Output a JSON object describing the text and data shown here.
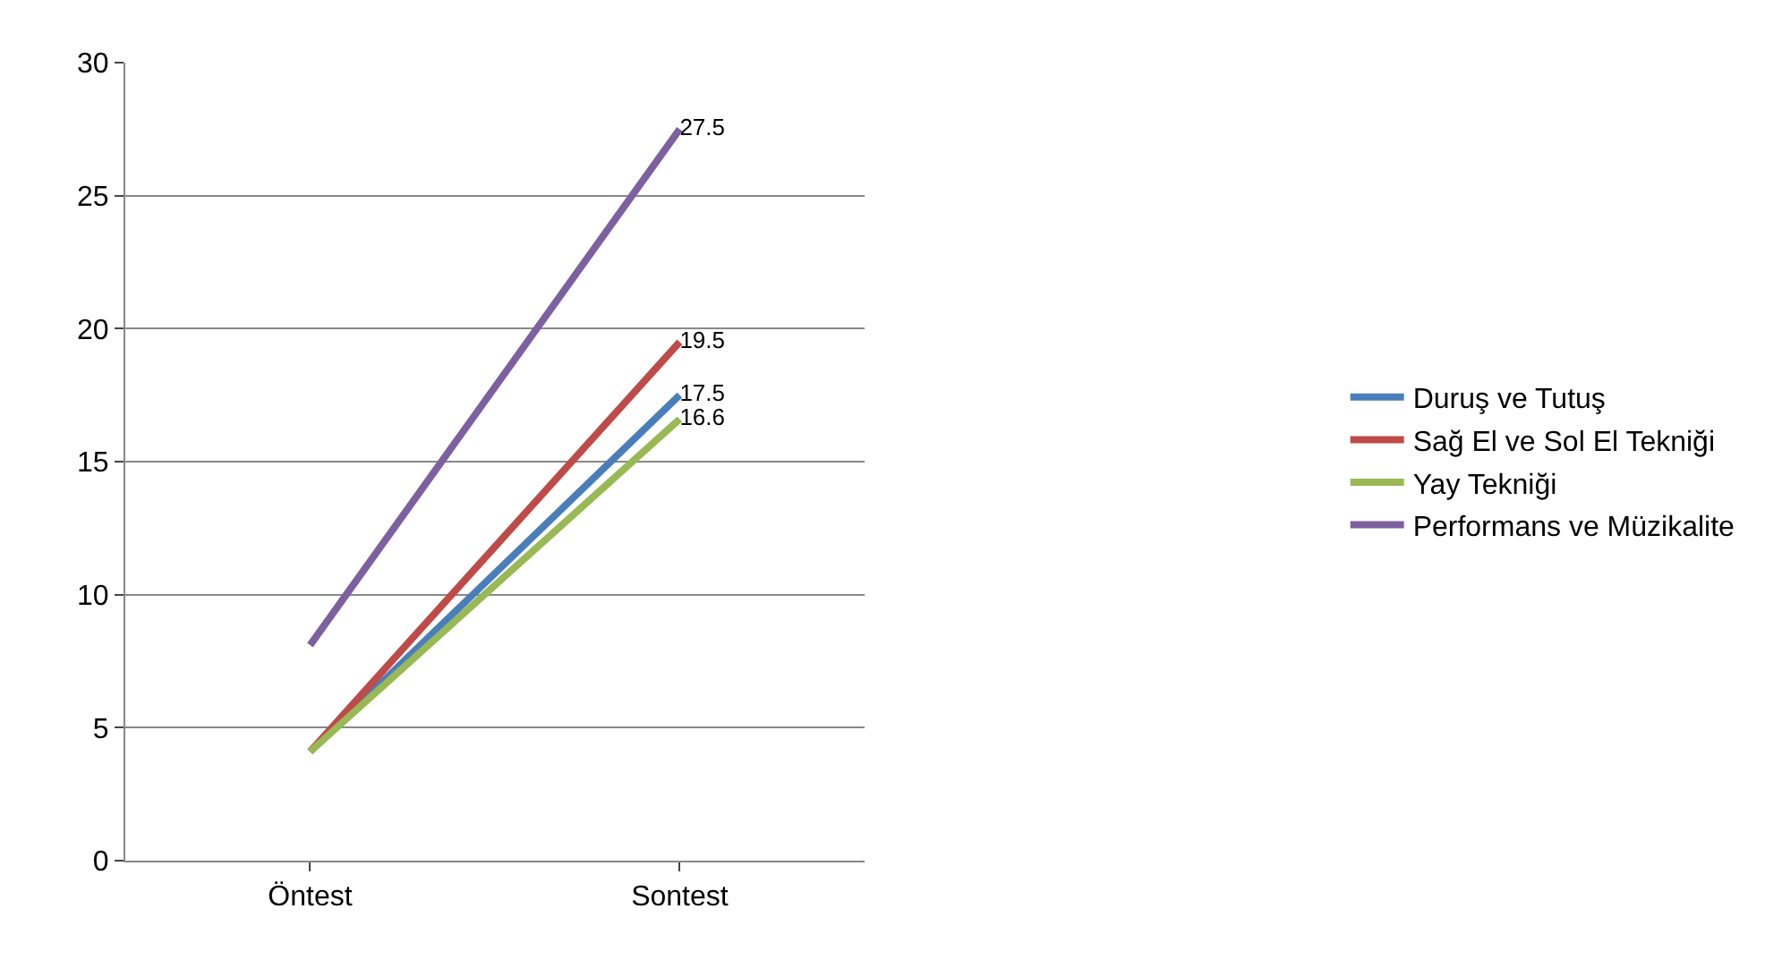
{
  "chart_data": {
    "type": "line",
    "categories": [
      "Öntest",
      "Sontest"
    ],
    "series": [
      {
        "name": "Duruş ve Tutuş",
        "color": "#4a7ebb",
        "values": [
          4.1,
          17.5
        ],
        "value_labels": [
          null,
          "17.5"
        ]
      },
      {
        "name": "Sağ El ve Sol El Tekniği",
        "color": "#be4b48",
        "values": [
          4.1,
          19.5
        ],
        "value_labels": [
          null,
          "19.5"
        ]
      },
      {
        "name": "Yay Tekniği",
        "color": "#98b954",
        "values": [
          4.1,
          16.6
        ],
        "value_labels": [
          null,
          "16.6"
        ]
      },
      {
        "name": "Performans ve Müzikalite",
        "color": "#7d60a0",
        "values": [
          8.1,
          27.5
        ],
        "value_labels": [
          null,
          "27.5"
        ]
      }
    ],
    "ylim": [
      0,
      30
    ],
    "yticks": [
      0,
      5,
      10,
      15,
      20,
      25,
      30
    ],
    "grid": "y",
    "legend": "right",
    "marker": "none",
    "line_style": "solid"
  }
}
